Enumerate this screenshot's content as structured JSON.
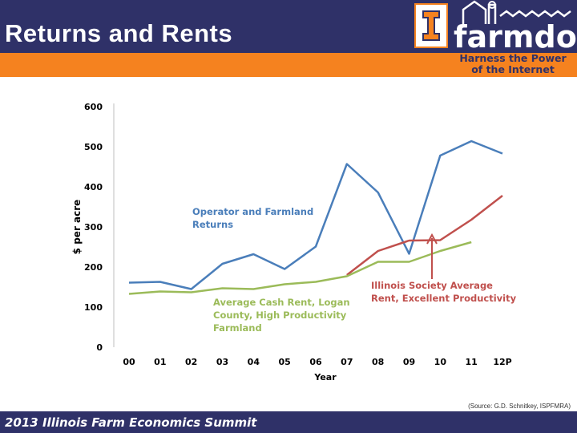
{
  "slide": {
    "title": "Returns and Rents",
    "logo_word": "farmdoc",
    "tagline_1": "Harness the Power",
    "tagline_2": "of the Internet",
    "source": "(Source: G.D. Schnitkey, ISPFMRA)",
    "footer": "2013 Illinois Farm Economics Summit"
  },
  "colors": {
    "header": "#2f3168",
    "accent": "#f5821f",
    "operator_returns": "#4a7eba",
    "society_rent": "#c0504d",
    "cash_rent": "#9bbb59"
  },
  "chart_data": {
    "type": "line",
    "ylabel": "$ per acre",
    "xlabel": "Year",
    "ylim": [
      0,
      600
    ],
    "yticks": [
      "0",
      "100",
      "200",
      "300",
      "400",
      "500",
      "600"
    ],
    "categories": [
      "00",
      "01",
      "02",
      "03",
      "04",
      "05",
      "06",
      "07",
      "08",
      "09",
      "10",
      "11",
      "12P"
    ],
    "series": [
      {
        "name": "Operator and Farmland Returns",
        "color": "#4a7eba",
        "values": [
          161,
          163,
          145,
          208,
          232,
          195,
          251,
          457,
          386,
          233,
          478,
          514,
          483
        ]
      },
      {
        "name": "Illinois Society Average Rent, Excellent Productivity",
        "color": "#c0504d",
        "values": [
          null,
          null,
          null,
          null,
          null,
          null,
          null,
          180,
          240,
          266,
          267,
          318,
          378
        ]
      },
      {
        "name": "Average Cash Rent, Logan County, High Productivity Farmland",
        "color": "#9bbb59",
        "values": [
          133,
          139,
          137,
          147,
          145,
          157,
          163,
          177,
          213,
          213,
          240,
          262,
          null
        ]
      }
    ],
    "annotations": [
      {
        "lines": [
          "Operator and Farmland",
          "Returns"
        ]
      },
      {
        "lines": [
          "Illinois Society Average",
          "Rent, Excellent Productivity"
        ]
      },
      {
        "lines": [
          "Average Cash Rent, Logan",
          "County, High Productivity",
          "Farmland"
        ]
      }
    ]
  }
}
